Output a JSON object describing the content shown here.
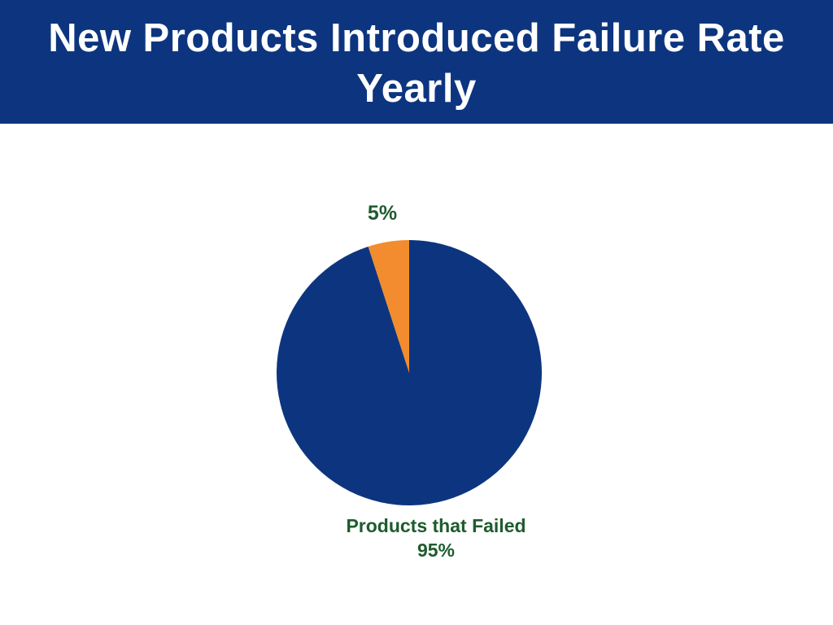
{
  "page": {
    "background": "#FFFFFF"
  },
  "header": {
    "title_line1": "New Products Introduced Failure Rate",
    "title_line2": "Yearly",
    "background": "#0D357F",
    "text_color": "#FFFFFF"
  },
  "chart_data": {
    "type": "pie",
    "title": "New Products Introduced Failure Rate Yearly",
    "direction": "clockwise",
    "start_angle_deg": 0,
    "legend": "none",
    "labels_position": "outside",
    "label_color": "#1E5B2E",
    "slices": [
      {
        "label": "Products that Failed",
        "value_pct": 95,
        "color": "#0D357F",
        "outside_label_lines": [
          "Products that Failed",
          "95%"
        ]
      },
      {
        "label": "5%",
        "value_pct": 5,
        "color": "#F28C2E",
        "outside_label_lines": [
          "5%"
        ]
      }
    ]
  }
}
